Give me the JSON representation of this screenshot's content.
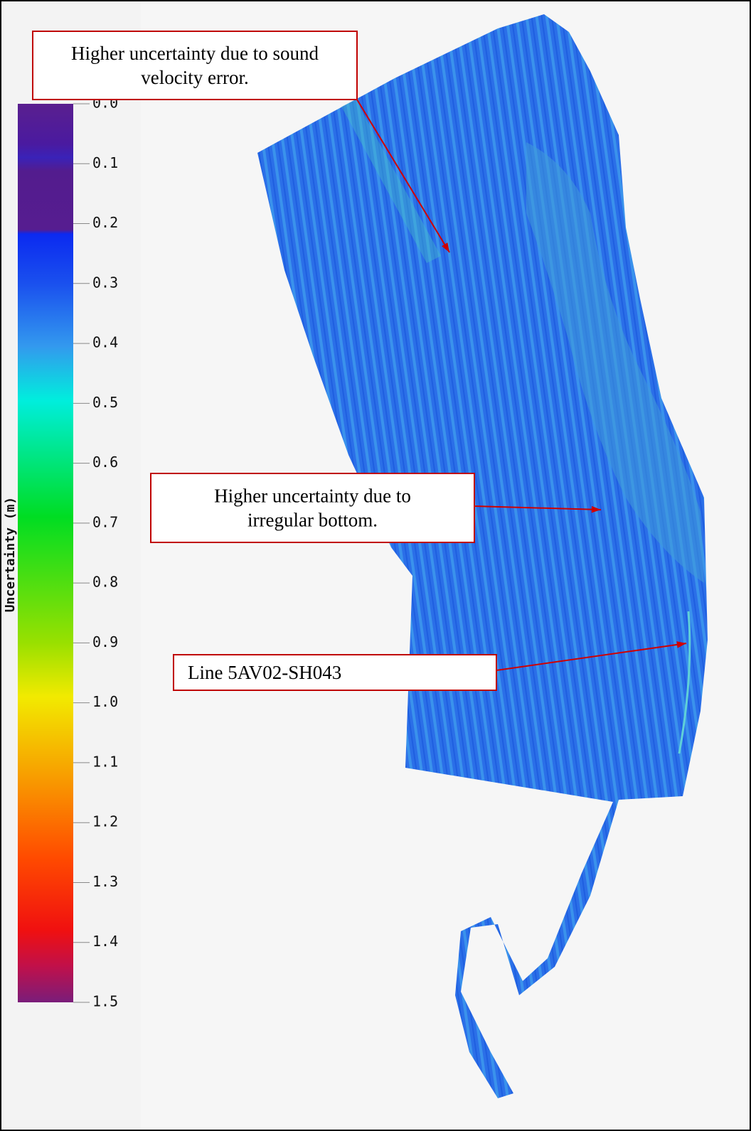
{
  "colorbar": {
    "label": "Uncertainty (m)",
    "lim": [
      0,
      1.5
    ],
    "ticks": [
      {
        "value": 0,
        "label": "0.0"
      },
      0.1,
      0.2,
      0.3,
      0.4,
      0.5,
      0.6,
      0.7,
      0.8,
      0.9,
      {
        "value": 1,
        "label": "1.0"
      },
      1.1,
      1.2,
      1.3,
      1.4,
      1.5
    ]
  },
  "annotations": [
    {
      "lines": [
        "Higher uncertainty due to sound",
        "velocity error."
      ]
    },
    {
      "lines": [
        "Higher uncertainty due to",
        "irregular bottom."
      ]
    },
    {
      "lines": [
        "Line 5AV02-SH043"
      ]
    }
  ]
}
